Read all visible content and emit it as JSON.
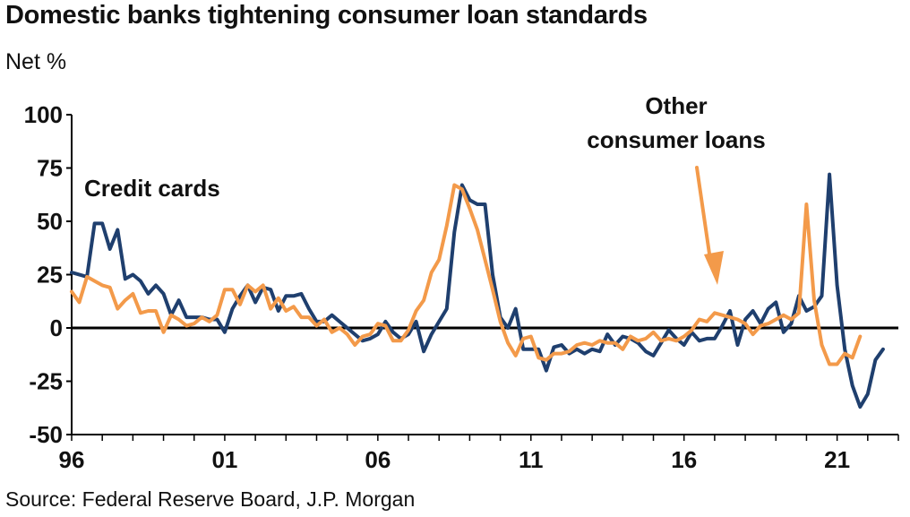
{
  "chart_data": {
    "type": "line",
    "title": "Domestic banks tightening consumer loan standards",
    "ylabel": "Net %",
    "source": "Source: Federal Reserve Board, J.P. Morgan",
    "ylim": [
      -50,
      100
    ],
    "yticks": [
      100,
      75,
      50,
      25,
      0,
      -25,
      -50
    ],
    "xlim": [
      1996.0,
      2023.0
    ],
    "xticks": [
      {
        "value": 1996,
        "label": "96"
      },
      {
        "value": 2001,
        "label": "01"
      },
      {
        "value": 2006,
        "label": "06"
      },
      {
        "value": 2011,
        "label": "11"
      },
      {
        "value": 2016,
        "label": "16"
      },
      {
        "value": 2021,
        "label": "21"
      }
    ],
    "grid": false,
    "annotations": [
      {
        "text_lines": [
          "Credit cards"
        ]
      },
      {
        "text_lines": [
          "Other",
          "consumer loans"
        ]
      }
    ],
    "series": [
      {
        "name": "Credit cards",
        "color": "#1f3f6e",
        "points": [
          [
            1996.0,
            26
          ],
          [
            1996.5,
            24
          ],
          [
            1996.75,
            49
          ],
          [
            1997.0,
            49
          ],
          [
            1997.25,
            37
          ],
          [
            1997.5,
            46
          ],
          [
            1997.75,
            23
          ],
          [
            1998.0,
            25
          ],
          [
            1998.25,
            22
          ],
          [
            1998.5,
            16
          ],
          [
            1998.75,
            20
          ],
          [
            1999.0,
            16
          ],
          [
            1999.25,
            6
          ],
          [
            1999.5,
            13
          ],
          [
            1999.75,
            5
          ],
          [
            2000.0,
            5
          ],
          [
            2000.25,
            5
          ],
          [
            2000.5,
            4
          ],
          [
            2000.75,
            4
          ],
          [
            2001.0,
            -2
          ],
          [
            2001.25,
            9
          ],
          [
            2001.5,
            15
          ],
          [
            2001.75,
            20
          ],
          [
            2002.0,
            12
          ],
          [
            2002.25,
            19
          ],
          [
            2002.5,
            18
          ],
          [
            2002.75,
            8
          ],
          [
            2003.0,
            15
          ],
          [
            2003.25,
            15
          ],
          [
            2003.5,
            16
          ],
          [
            2003.75,
            9
          ],
          [
            2004.0,
            3
          ],
          [
            2004.25,
            3
          ],
          [
            2004.5,
            6
          ],
          [
            2004.75,
            3
          ],
          [
            2005.0,
            0
          ],
          [
            2005.25,
            -3
          ],
          [
            2005.5,
            -6
          ],
          [
            2005.75,
            -5
          ],
          [
            2006.0,
            -3
          ],
          [
            2006.25,
            3
          ],
          [
            2006.5,
            -2
          ],
          [
            2006.75,
            -5
          ],
          [
            2007.0,
            -3
          ],
          [
            2007.25,
            3
          ],
          [
            2007.5,
            -11
          ],
          [
            2007.75,
            -3
          ],
          [
            2008.0,
            3
          ],
          [
            2008.25,
            9
          ],
          [
            2008.5,
            45
          ],
          [
            2008.75,
            67
          ],
          [
            2009.0,
            60
          ],
          [
            2009.25,
            58
          ],
          [
            2009.5,
            58
          ],
          [
            2009.75,
            25
          ],
          [
            2010.0,
            5
          ],
          [
            2010.25,
            0
          ],
          [
            2010.5,
            9
          ],
          [
            2010.75,
            -10
          ],
          [
            2011.0,
            -10
          ],
          [
            2011.25,
            -10
          ],
          [
            2011.5,
            -20
          ],
          [
            2011.75,
            -9
          ],
          [
            2012.0,
            -8
          ],
          [
            2012.25,
            -12
          ],
          [
            2012.5,
            -10
          ],
          [
            2012.75,
            -12
          ],
          [
            2013.0,
            -10
          ],
          [
            2013.25,
            -11
          ],
          [
            2013.5,
            -3
          ],
          [
            2013.75,
            -8
          ],
          [
            2014.0,
            -4
          ],
          [
            2014.25,
            -5
          ],
          [
            2014.5,
            -7
          ],
          [
            2014.75,
            -11
          ],
          [
            2015.0,
            -13
          ],
          [
            2015.25,
            -7
          ],
          [
            2015.5,
            -1
          ],
          [
            2015.75,
            -5
          ],
          [
            2016.0,
            -8
          ],
          [
            2016.25,
            -2
          ],
          [
            2016.5,
            -6
          ],
          [
            2016.75,
            -5
          ],
          [
            2017.0,
            -5
          ],
          [
            2017.25,
            1
          ],
          [
            2017.5,
            8
          ],
          [
            2017.75,
            -8
          ],
          [
            2018.0,
            4
          ],
          [
            2018.25,
            8
          ],
          [
            2018.5,
            2
          ],
          [
            2018.75,
            9
          ],
          [
            2019.0,
            12
          ],
          [
            2019.25,
            -2
          ],
          [
            2019.5,
            2
          ],
          [
            2019.75,
            15
          ],
          [
            2020.0,
            8
          ],
          [
            2020.25,
            10
          ],
          [
            2020.5,
            15
          ],
          [
            2020.75,
            72
          ],
          [
            2021.0,
            20
          ],
          [
            2021.25,
            -10
          ],
          [
            2021.5,
            -27
          ],
          [
            2021.75,
            -37
          ],
          [
            2022.0,
            -31
          ],
          [
            2022.25,
            -15
          ],
          [
            2022.5,
            -10
          ]
        ]
      },
      {
        "name": "Other consumer loans",
        "color": "#f39a4a",
        "points": [
          [
            1996.0,
            17
          ],
          [
            1996.25,
            12
          ],
          [
            1996.5,
            24
          ],
          [
            1996.75,
            22
          ],
          [
            1997.0,
            20
          ],
          [
            1997.25,
            19
          ],
          [
            1997.5,
            9
          ],
          [
            1997.75,
            13
          ],
          [
            1998.0,
            16
          ],
          [
            1998.25,
            7
          ],
          [
            1998.5,
            8
          ],
          [
            1998.75,
            8
          ],
          [
            1999.0,
            -2
          ],
          [
            1999.25,
            6
          ],
          [
            1999.5,
            4
          ],
          [
            1999.75,
            1
          ],
          [
            2000.0,
            2
          ],
          [
            2000.25,
            5
          ],
          [
            2000.5,
            3
          ],
          [
            2000.75,
            6
          ],
          [
            2001.0,
            18
          ],
          [
            2001.25,
            18
          ],
          [
            2001.5,
            11
          ],
          [
            2001.75,
            20
          ],
          [
            2002.0,
            17
          ],
          [
            2002.25,
            20
          ],
          [
            2002.5,
            9
          ],
          [
            2002.75,
            14
          ],
          [
            2003.0,
            8
          ],
          [
            2003.25,
            10
          ],
          [
            2003.5,
            5
          ],
          [
            2003.75,
            5
          ],
          [
            2004.0,
            1
          ],
          [
            2004.25,
            4
          ],
          [
            2004.5,
            -2
          ],
          [
            2004.75,
            0
          ],
          [
            2005.0,
            -3
          ],
          [
            2005.25,
            -8
          ],
          [
            2005.5,
            -4
          ],
          [
            2005.75,
            -3
          ],
          [
            2006.0,
            2
          ],
          [
            2006.25,
            1
          ],
          [
            2006.5,
            -6
          ],
          [
            2006.75,
            -6
          ],
          [
            2007.0,
            -1
          ],
          [
            2007.25,
            8
          ],
          [
            2007.5,
            13
          ],
          [
            2007.75,
            26
          ],
          [
            2008.0,
            32
          ],
          [
            2008.25,
            48
          ],
          [
            2008.5,
            67
          ],
          [
            2008.75,
            65
          ],
          [
            2009.0,
            56
          ],
          [
            2009.25,
            46
          ],
          [
            2009.5,
            32
          ],
          [
            2009.75,
            18
          ],
          [
            2010.0,
            3
          ],
          [
            2010.25,
            -7
          ],
          [
            2010.5,
            -13
          ],
          [
            2010.75,
            -5
          ],
          [
            2011.0,
            -4
          ],
          [
            2011.25,
            -14
          ],
          [
            2011.5,
            -15
          ],
          [
            2011.75,
            -12
          ],
          [
            2012.0,
            -12
          ],
          [
            2012.25,
            -11
          ],
          [
            2012.5,
            -8
          ],
          [
            2012.75,
            -7
          ],
          [
            2013.0,
            -8
          ],
          [
            2013.25,
            -6
          ],
          [
            2013.5,
            -7
          ],
          [
            2013.75,
            -7
          ],
          [
            2014.0,
            -10
          ],
          [
            2014.25,
            -4
          ],
          [
            2014.5,
            -6
          ],
          [
            2014.75,
            -5
          ],
          [
            2015.0,
            -2
          ],
          [
            2015.25,
            -6
          ],
          [
            2015.5,
            -5
          ],
          [
            2015.75,
            -6
          ],
          [
            2016.0,
            -4
          ],
          [
            2016.25,
            -1
          ],
          [
            2016.5,
            4
          ],
          [
            2016.75,
            3
          ],
          [
            2017.0,
            7
          ],
          [
            2017.25,
            6
          ],
          [
            2017.5,
            5
          ],
          [
            2017.75,
            4
          ],
          [
            2018.0,
            2
          ],
          [
            2018.25,
            -3
          ],
          [
            2018.5,
            1
          ],
          [
            2018.75,
            2
          ],
          [
            2019.0,
            4
          ],
          [
            2019.25,
            6
          ],
          [
            2019.5,
            4
          ],
          [
            2019.75,
            7
          ],
          [
            2020.0,
            58
          ],
          [
            2020.25,
            13
          ],
          [
            2020.5,
            -8
          ],
          [
            2020.75,
            -17
          ],
          [
            2021.0,
            -17
          ],
          [
            2021.25,
            -12
          ],
          [
            2021.5,
            -14
          ],
          [
            2021.75,
            -4
          ]
        ]
      }
    ]
  }
}
